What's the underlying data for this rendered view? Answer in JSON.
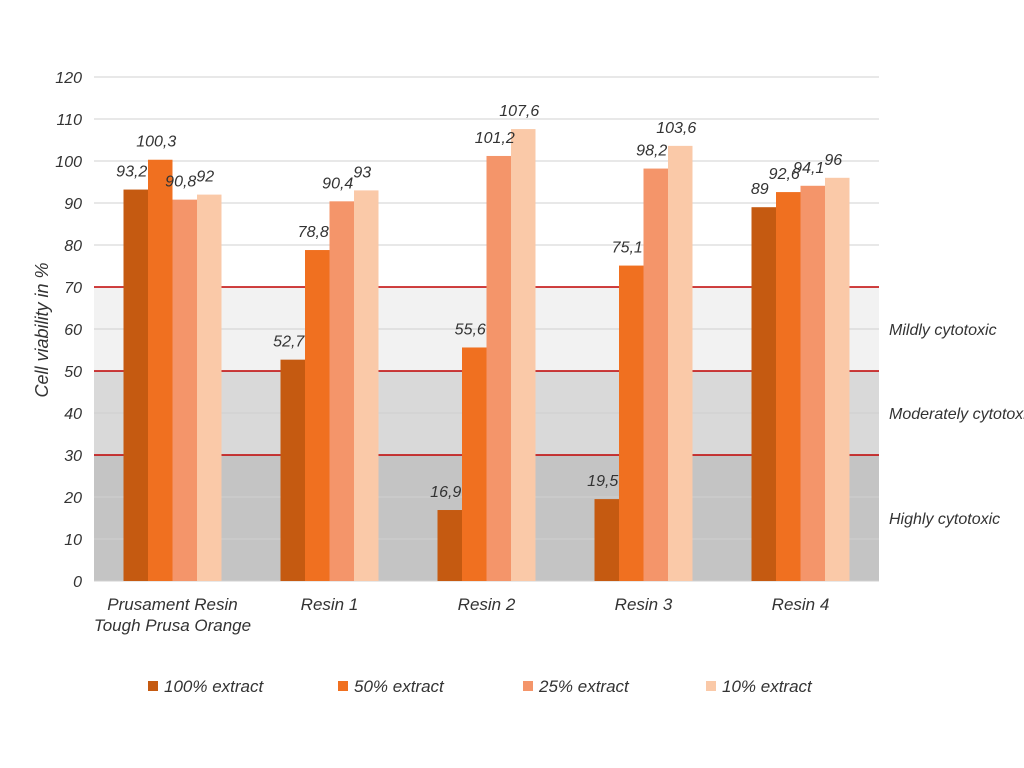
{
  "chart_data": {
    "type": "bar",
    "ylabel": "Cell viability in %",
    "xlabel": "",
    "title": "",
    "ylim": [
      0,
      120
    ],
    "yticks": [
      0,
      10,
      20,
      30,
      40,
      50,
      60,
      70,
      80,
      90,
      100,
      110,
      120
    ],
    "grid": true,
    "legend_position": "bottom",
    "categories": [
      [
        "Prusament Resin",
        "Tough Prusa Orange"
      ],
      [
        "Resin 1"
      ],
      [
        "Resin 2"
      ],
      [
        "Resin 3"
      ],
      [
        "Resin 4"
      ]
    ],
    "series": [
      {
        "name": "100% extract",
        "color": "#c55a11",
        "values": [
          93.2,
          52.7,
          16.9,
          19.5,
          89
        ],
        "labels": [
          "93,2",
          "52,7",
          "16,9",
          "19,5",
          "89"
        ]
      },
      {
        "name": "50% extract",
        "color": "#f07020",
        "values": [
          100.3,
          78.8,
          55.6,
          75.1,
          92.6
        ],
        "labels": [
          "100,3",
          "78,8",
          "55,6",
          "75,1",
          "92,6"
        ]
      },
      {
        "name": "25% extract",
        "color": "#f4956a",
        "values": [
          90.8,
          90.4,
          101.2,
          98.2,
          94.1
        ],
        "labels": [
          "90,8",
          "90,4",
          "101,2",
          "98,2",
          "94,1"
        ]
      },
      {
        "name": "10% extract",
        "color": "#fac9a8",
        "values": [
          92,
          93,
          107.6,
          103.6,
          96
        ],
        "labels": [
          "92",
          "93",
          "107,6",
          "103,6",
          "96"
        ]
      }
    ],
    "zones": [
      {
        "label": "Highly cytotoxic",
        "from": 0,
        "to": 30,
        "color": "#c4c4c4"
      },
      {
        "label": "Moderately cytotoxic",
        "from": 30,
        "to": 50,
        "color": "#d9d9d9"
      },
      {
        "label": "Mildly cytotoxic",
        "from": 50,
        "to": 70,
        "color": "#f2f2f2"
      }
    ],
    "threshold_lines": [
      30,
      50,
      70
    ],
    "threshold_color": "#c00000",
    "gridline_color": "#d0d0d0"
  }
}
